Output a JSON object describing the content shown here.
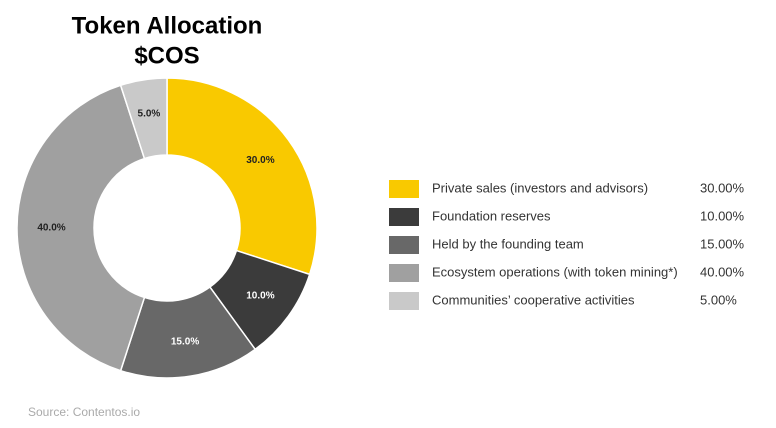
{
  "chart_data": {
    "type": "donut",
    "title": "Token Allocation",
    "subtitle": "$COS",
    "categories": [
      "Private sales (investors and advisors)",
      "Foundation reserves",
      "Held by the founding team",
      "Ecosystem operations (with token mining*)",
      "Communities’ cooperative activities"
    ],
    "values": [
      30,
      10,
      15,
      40,
      5
    ],
    "value_labels": [
      "30.0%",
      "10.0%",
      "15.0%",
      "40.0%",
      "5.0%"
    ],
    "legend_labels": [
      "30.00%",
      "10.00%",
      "15.00%",
      "40.00%",
      "5.00%"
    ],
    "colors": [
      "#f9c900",
      "#3b3b3b",
      "#686868",
      "#a0a0a0",
      "#c9c9c9"
    ],
    "source": "Source: Contentos.io"
  }
}
